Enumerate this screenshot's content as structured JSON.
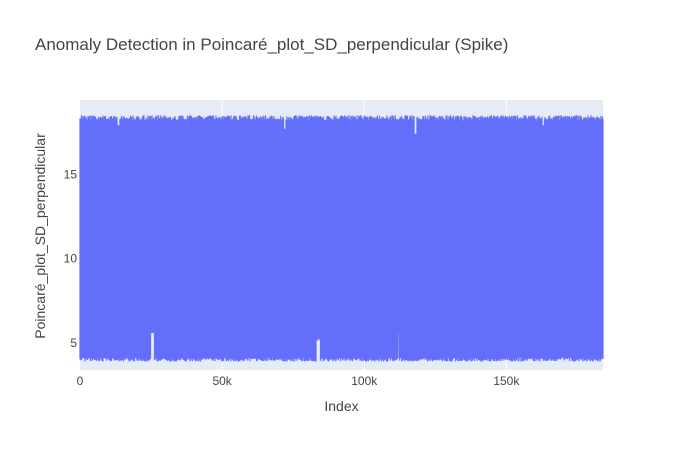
{
  "chart_data": {
    "type": "line",
    "title": "Anomaly Detection in Poincaré_plot_SD_perpendicular (Spike)",
    "xlabel": "Index",
    "ylabel": "Poincaré_plot_SD_perpendicular",
    "xlim": [
      0,
      184000
    ],
    "ylim": [
      3.4,
      19.4
    ],
    "x_ticks": [
      0,
      50000,
      100000,
      150000
    ],
    "x_tick_labels": [
      "0",
      "50k",
      "100k",
      "150k"
    ],
    "y_ticks": [
      5,
      10,
      15
    ],
    "y_tick_labels": [
      "5",
      "10",
      "15"
    ],
    "grid": true,
    "legend": "none",
    "series": [
      {
        "color": "#636efa",
        "x_range": [
          0,
          184000
        ],
        "approx_typical_max": 18.5,
        "approx_typical_min": 3.9,
        "max_peak": 18.8,
        "notable_dips_max": [
          {
            "x": 13500,
            "y": 17.9
          },
          {
            "x": 72000,
            "y": 17.7
          },
          {
            "x": 118000,
            "y": 17.4
          },
          {
            "x": 163000,
            "y": 17.9
          }
        ],
        "notable_high_min": [
          {
            "x": 25500,
            "y": 5.6
          },
          {
            "x": 84000,
            "y": 5.2
          }
        ]
      }
    ],
    "colors": {
      "plot_background": "#e5ecf6",
      "gridline": "#ffffff",
      "series": "#636efa",
      "text": "#444444"
    }
  }
}
